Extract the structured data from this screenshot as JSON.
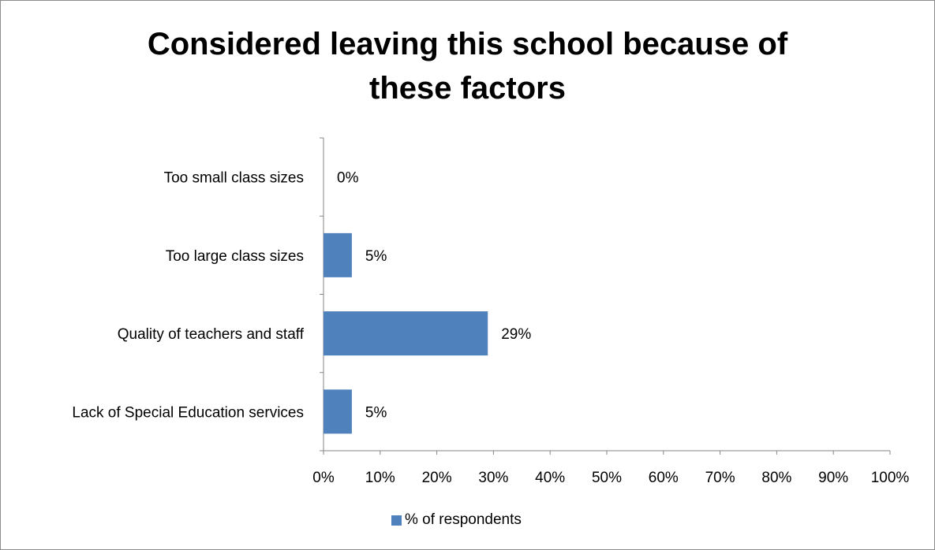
{
  "chart_data": {
    "type": "bar",
    "orientation": "horizontal",
    "title_lines": [
      "Considered leaving this school because of",
      "these factors"
    ],
    "categories": [
      "Too small class sizes",
      "Too large class sizes",
      "Quality of teachers and staff",
      "Lack of Special Education services"
    ],
    "series": [
      {
        "name": "% of respondents",
        "values": [
          0,
          5,
          29,
          5
        ],
        "color": "#4f81bd"
      }
    ],
    "data_labels": [
      "0%",
      "5%",
      "29%",
      "5%"
    ],
    "xlim": [
      0,
      100
    ],
    "x_ticks": [
      "0%",
      "10%",
      "20%",
      "30%",
      "40%",
      "50%",
      "60%",
      "70%",
      "80%",
      "90%",
      "100%"
    ],
    "grid": false,
    "legend_position": "bottom"
  }
}
